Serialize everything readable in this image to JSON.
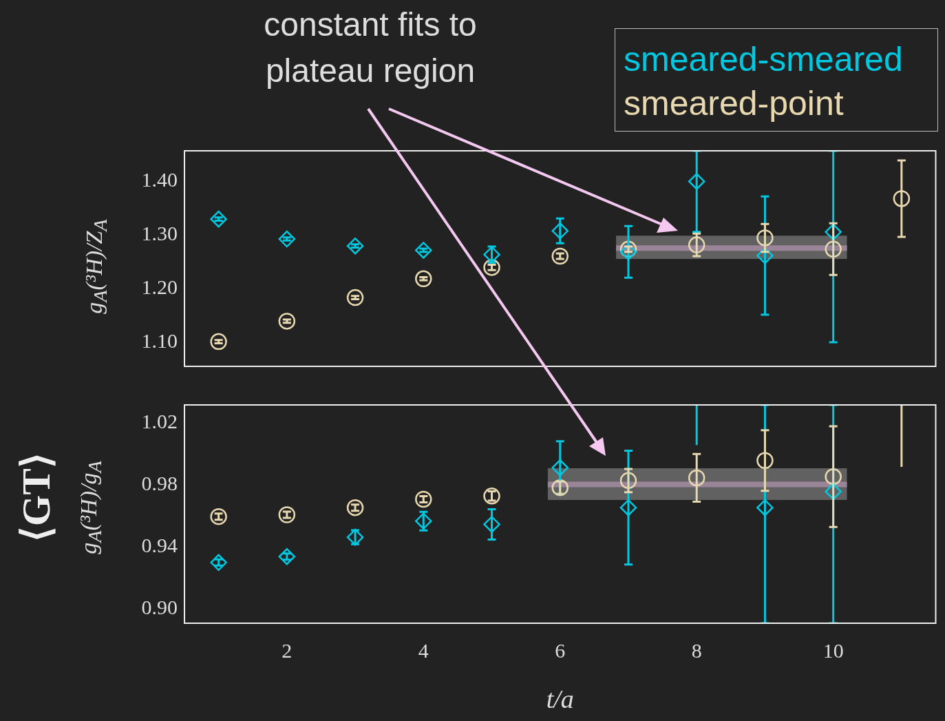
{
  "chart_data": [
    {
      "type": "scatter",
      "annotations": [
        "constant fits to plateau region"
      ],
      "ylabel": "g$_{A}$(³H)/Z$_{A}$",
      "legend": "top right",
      "tick_labels": "y",
      "x": [
        1,
        2,
        3,
        4,
        5,
        6,
        7,
        8,
        9,
        10,
        11
      ],
      "xlim": [
        0.5,
        11.5
      ],
      "xticks": [
        2,
        4,
        6,
        8,
        10
      ],
      "ylim": [
        1.055,
        1.456
      ],
      "yticks": [
        {
          "value": 1.1,
          "label": "1.10"
        },
        {
          "value": 1.2,
          "label": "1.20"
        },
        {
          "value": 1.3,
          "label": "1.30"
        },
        {
          "value": 1.4,
          "label": "1.40"
        }
      ],
      "series": [
        {
          "name": "smeared-smeared",
          "color": "#00c8e0",
          "marker": "diamond",
          "x": [
            1,
            2,
            3,
            4,
            5,
            6,
            7,
            8,
            9,
            10
          ],
          "values": [
            1.329,
            1.292,
            1.279,
            1.271,
            1.263,
            1.307,
            1.268,
            1.399,
            1.261,
            1.305
          ],
          "errors": [
            0.003,
            0.003,
            0.003,
            0.003,
            0.015,
            0.023,
            0.048,
            [
              1.305,
              1.456
            ],
            0.11,
            [
              1.1,
              1.456
            ]
          ]
        },
        {
          "name": "smeared-point",
          "color": "#e8d8b0",
          "marker": "circle",
          "values": [
            1.101,
            1.139,
            1.183,
            1.218,
            1.239,
            1.26,
            1.273,
            1.281,
            1.294,
            1.273,
            1.367
          ],
          "errors": [
            0.003,
            0.003,
            0.003,
            0.003,
            0.005,
            0.005,
            0.005,
            0.021,
            0.026,
            0.048,
            0.071
          ]
        },
        {
          "type": "line",
          "color": "#9a8598",
          "x": [
            6.82,
            10.2
          ],
          "values": [
            1.275,
            1.275
          ],
          "lower": [
            1.255,
            1.255
          ],
          "upper": [
            1.298,
            1.298
          ]
        }
      ]
    },
    {
      "type": "scatter",
      "annotations": [
        "⟨GT⟩"
      ],
      "ylabel": "g$_{A}$(³H)/g$_{A}$",
      "xlabel": "t/a",
      "xlim": [
        0.5,
        11.5
      ],
      "xticks": [
        2,
        4,
        6,
        8,
        10
      ],
      "ylim": [
        0.8908,
        1.0317
      ],
      "yticks": [
        {
          "value": 0.9,
          "label": "0.90"
        },
        0.94,
        0.98,
        1.02
      ],
      "series": [
        {
          "color": "#00c8e0",
          "marker": "diamond",
          "x": [
            1,
            2,
            3,
            4,
            5,
            6,
            7,
            9,
            10
          ],
          "values": [
            0.93,
            0.9338,
            0.9463,
            0.9567,
            0.9546,
            0.9912,
            0.9654,
            0.9654,
            0.9758
          ],
          "errors": [
            0.002,
            0.002,
            0.0045,
            0.006,
            0.0098,
            0.017,
            0.0367,
            [
              0.8908,
              1.0317
            ],
            [
              0.8908,
              1.0317
            ]
          ]
        },
        {
          "color": "#e8d8b0",
          "marker": "circle",
          "x": [
            1,
            2,
            3,
            4,
            5,
            6,
            7,
            8,
            9,
            10
          ],
          "values": [
            0.9596,
            0.9608,
            0.9654,
            0.9708,
            0.9729,
            0.9783,
            0.9829,
            0.9846,
            0.9958,
            0.9854
          ],
          "errors": [
            0.002,
            0.002,
            0.002,
            0.002,
            0.003,
            0.004,
            0.0075,
            0.0154,
            0.0196,
            0.0325
          ]
        },
        {
          "type": "line",
          "color": "#00c8e0",
          "x": [
            8,
            8
          ],
          "values": [
            1.0058,
            1.0317
          ]
        },
        {
          "type": "line",
          "color": "#e8d8b0",
          "x": [
            11,
            11
          ],
          "values": [
            0.9917,
            1.0317
          ]
        },
        {
          "type": "line",
          "color": "#9a8598",
          "x": [
            5.82,
            10.2
          ],
          "values": [
            0.9804,
            0.9804
          ],
          "lower": [
            0.9704,
            0.9704
          ],
          "upper": [
            0.9908,
            0.9908
          ]
        }
      ]
    }
  ]
}
